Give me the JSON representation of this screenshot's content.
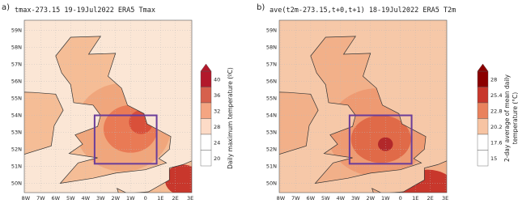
{
  "panels": [
    {
      "label": "a)",
      "title": "tmax-273.15  19-19Jul2022  ERA5  Tmax",
      "lat_labels": [
        "59N",
        "58N",
        "57N",
        "56N",
        "55N",
        "54N",
        "53N",
        "52N",
        "51N",
        "50N"
      ],
      "lon_labels": [
        "8W",
        "7W",
        "6W",
        "5W",
        "4W",
        "3W",
        "2W",
        "1W",
        "0",
        "1E",
        "2E",
        "3E"
      ],
      "colorbar": {
        "ticks": [
          "40",
          "36",
          "32",
          "28",
          "24",
          "20"
        ],
        "label": [
          "Daily maximum temperature (ºC)"
        ]
      }
    },
    {
      "label": "b)",
      "title": "ave(t2m-273.15,t+0,t+1)  18-19Jul2022  ERA5  T2m",
      "lat_labels": [
        "59N",
        "58N",
        "57N",
        "56N",
        "55N",
        "54N",
        "53N",
        "52N",
        "51N",
        "50N"
      ],
      "lon_labels": [
        "8W",
        "7W",
        "6W",
        "5W",
        "4W",
        "3W",
        "2W",
        "1W",
        "0",
        "1E",
        "2E",
        "3E"
      ],
      "colorbar": {
        "ticks": [
          "28",
          "25.4",
          "22.8",
          "20.2",
          "17.6",
          "15"
        ],
        "label": [
          "2-day average of mean daily",
          "temperature (°C)"
        ]
      }
    }
  ]
}
